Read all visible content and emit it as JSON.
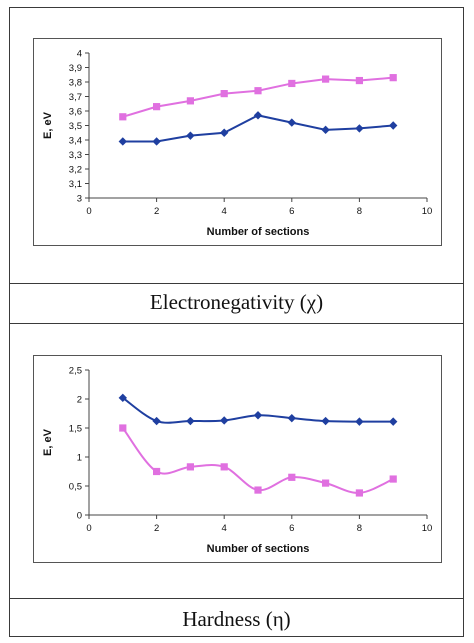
{
  "charts": [
    {
      "caption": "Electronegativity (χ)",
      "chart_data": {
        "type": "line",
        "xlabel": "Number of sections",
        "ylabel": "E, eV",
        "xlim": [
          0,
          10
        ],
        "ylim": [
          3,
          4
        ],
        "xticks": [
          "0",
          "2",
          "4",
          "6",
          "8",
          "10"
        ],
        "yticks": [
          "3",
          "3,1",
          "3,2",
          "3,3",
          "3,4",
          "3,5",
          "3,6",
          "3,7",
          "3,8",
          "3,9",
          "4"
        ],
        "x": [
          1,
          2,
          3,
          4,
          5,
          6,
          7,
          8,
          9
        ],
        "series": [
          {
            "values": [
              3.39,
              3.39,
              3.43,
              3.45,
              3.57,
              3.52,
              3.47,
              3.48,
              3.5
            ],
            "color": "#1f3fa0",
            "marker": "diamond",
            "smooth": false
          },
          {
            "values": [
              3.56,
              3.63,
              3.67,
              3.72,
              3.74,
              3.79,
              3.82,
              3.81,
              3.83
            ],
            "color": "#e070e0",
            "marker": "square",
            "smooth": false
          }
        ],
        "grid": false,
        "legend": "none"
      }
    },
    {
      "caption": "Hardness (η)",
      "chart_data": {
        "type": "line",
        "xlabel": "Number of sections",
        "ylabel": "E, eV",
        "xlim": [
          0,
          10
        ],
        "ylim": [
          0,
          2.5
        ],
        "xticks": [
          "0",
          "2",
          "4",
          "6",
          "8",
          "10"
        ],
        "yticks": [
          "0",
          "0,5",
          "1",
          "1,5",
          "2",
          "2,5"
        ],
        "x": [
          1,
          2,
          3,
          4,
          5,
          6,
          7,
          8,
          9
        ],
        "series": [
          {
            "values": [
              2.02,
              1.62,
              1.62,
              1.63,
              1.72,
              1.67,
              1.62,
              1.61,
              1.61
            ],
            "color": "#1f3fa0",
            "marker": "diamond",
            "smooth": true
          },
          {
            "values": [
              1.5,
              0.75,
              0.83,
              0.83,
              0.43,
              0.65,
              0.55,
              0.38,
              0.62
            ],
            "color": "#e070e0",
            "marker": "square",
            "smooth": true
          }
        ],
        "grid": false,
        "legend": "none"
      }
    }
  ]
}
